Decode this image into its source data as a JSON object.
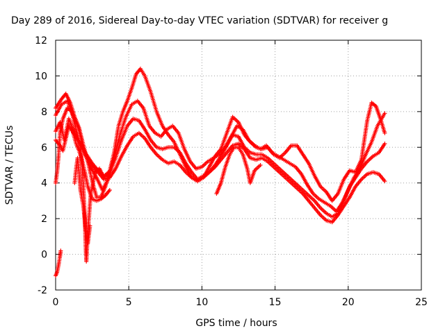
{
  "chart_data": {
    "type": "scatter",
    "title": "Day 289 of 2016, Sidereal Day-to-day VTEC variation (SDTVAR) for receiver g",
    "xlabel": "GPS time / hours",
    "ylabel": "SDTVAR / TECUs",
    "xlim": [
      0,
      25
    ],
    "ylim": [
      -2,
      12
    ],
    "xticks": [
      "0",
      "5",
      "10",
      "15",
      "20",
      "25"
    ],
    "yticks": [
      "-2",
      "0",
      "2",
      "4",
      "6",
      "8",
      "10",
      "12"
    ],
    "grid": true,
    "marker": "+",
    "series_color": "#ff0000",
    "series": [
      {
        "name": "trace-1",
        "points": [
          [
            0.0,
            8.2
          ],
          [
            0.4,
            8.7
          ],
          [
            0.7,
            9.0
          ],
          [
            1.0,
            8.5
          ],
          [
            1.3,
            7.7
          ],
          [
            1.6,
            7.1
          ],
          [
            1.9,
            6.1
          ],
          [
            2.2,
            5.2
          ],
          [
            2.5,
            4.1
          ],
          [
            2.8,
            3.2
          ],
          [
            3.1,
            3.2
          ],
          [
            3.4,
            3.8
          ],
          [
            3.7,
            4.7
          ],
          [
            4.0,
            5.7
          ],
          [
            4.3,
            7.2
          ],
          [
            4.6,
            8.0
          ],
          [
            4.9,
            8.6
          ],
          [
            5.2,
            9.3
          ],
          [
            5.5,
            10.1
          ],
          [
            5.8,
            10.4
          ],
          [
            6.1,
            10.0
          ],
          [
            6.5,
            9.1
          ],
          [
            6.9,
            8.0
          ],
          [
            7.3,
            7.2
          ],
          [
            7.7,
            6.7
          ],
          [
            8.1,
            6.3
          ],
          [
            8.5,
            5.6
          ],
          [
            8.9,
            4.9
          ],
          [
            9.3,
            4.3
          ],
          [
            9.7,
            4.1
          ],
          [
            10.1,
            4.3
          ],
          [
            10.5,
            4.9
          ],
          [
            10.9,
            5.5
          ],
          [
            11.3,
            5.9
          ],
          [
            11.7,
            6.8
          ],
          [
            12.1,
            7.7
          ],
          [
            12.5,
            7.4
          ],
          [
            12.9,
            6.7
          ],
          [
            13.3,
            6.3
          ],
          [
            13.7,
            6.0
          ],
          [
            14.1,
            5.9
          ],
          [
            14.5,
            6.0
          ],
          [
            14.9,
            5.6
          ],
          [
            15.3,
            5.4
          ],
          [
            15.7,
            5.7
          ],
          [
            16.1,
            6.1
          ],
          [
            16.5,
            6.1
          ],
          [
            16.9,
            5.6
          ],
          [
            17.3,
            5.1
          ],
          [
            17.7,
            4.4
          ],
          [
            18.1,
            3.8
          ],
          [
            18.5,
            3.5
          ],
          [
            18.9,
            3.0
          ],
          [
            19.3,
            3.4
          ],
          [
            19.7,
            4.2
          ],
          [
            20.1,
            4.7
          ],
          [
            20.5,
            4.6
          ],
          [
            20.9,
            5.3
          ],
          [
            21.3,
            7.5
          ],
          [
            21.6,
            8.5
          ],
          [
            21.9,
            8.3
          ],
          [
            22.2,
            7.6
          ],
          [
            22.5,
            6.8
          ]
        ]
      },
      {
        "name": "trace-2",
        "points": [
          [
            0.0,
            7.8
          ],
          [
            0.4,
            8.4
          ],
          [
            0.8,
            8.6
          ],
          [
            1.2,
            7.8
          ],
          [
            1.6,
            7.0
          ],
          [
            2.0,
            5.6
          ],
          [
            2.4,
            4.9
          ],
          [
            2.8,
            4.3
          ],
          [
            3.2,
            3.6
          ],
          [
            3.6,
            4.2
          ],
          [
            4.0,
            5.4
          ],
          [
            4.4,
            6.7
          ],
          [
            4.8,
            7.7
          ],
          [
            5.2,
            8.4
          ],
          [
            5.6,
            8.6
          ],
          [
            6.0,
            8.2
          ],
          [
            6.4,
            7.2
          ],
          [
            6.8,
            6.8
          ],
          [
            7.2,
            6.6
          ],
          [
            7.6,
            7.0
          ],
          [
            8.0,
            7.2
          ],
          [
            8.4,
            6.8
          ],
          [
            8.8,
            5.9
          ],
          [
            9.2,
            5.2
          ],
          [
            9.6,
            4.8
          ],
          [
            10.0,
            4.9
          ],
          [
            10.4,
            5.2
          ],
          [
            10.8,
            5.4
          ],
          [
            11.2,
            5.6
          ],
          [
            11.6,
            6.0
          ],
          [
            12.0,
            6.6
          ],
          [
            12.4,
            7.2
          ],
          [
            12.8,
            7.0
          ],
          [
            13.2,
            6.4
          ],
          [
            13.6,
            6.1
          ],
          [
            14.0,
            5.9
          ],
          [
            14.4,
            6.1
          ],
          [
            14.8,
            5.7
          ],
          [
            15.2,
            5.5
          ],
          [
            15.6,
            5.3
          ],
          [
            16.0,
            5.1
          ],
          [
            16.4,
            4.9
          ],
          [
            16.8,
            4.5
          ],
          [
            17.2,
            3.9
          ],
          [
            17.6,
            3.4
          ],
          [
            18.0,
            3.1
          ],
          [
            18.4,
            2.9
          ],
          [
            18.8,
            2.7
          ],
          [
            19.2,
            2.4
          ],
          [
            19.6,
            2.9
          ],
          [
            20.0,
            3.6
          ],
          [
            20.4,
            4.3
          ],
          [
            20.8,
            4.8
          ],
          [
            21.2,
            5.6
          ],
          [
            21.6,
            6.3
          ],
          [
            22.0,
            7.2
          ],
          [
            22.5,
            7.9
          ]
        ]
      },
      {
        "name": "trace-3",
        "points": [
          [
            0.0,
            6.9
          ],
          [
            0.3,
            7.4
          ],
          [
            0.6,
            6.4
          ],
          [
            0.9,
            7.6
          ],
          [
            1.3,
            6.8
          ],
          [
            1.7,
            6.2
          ],
          [
            2.1,
            5.6
          ],
          [
            2.5,
            5.1
          ],
          [
            2.9,
            4.7
          ],
          [
            3.3,
            4.4
          ],
          [
            3.7,
            4.6
          ],
          [
            4.1,
            5.4
          ],
          [
            4.5,
            6.4
          ],
          [
            4.9,
            7.2
          ],
          [
            5.3,
            7.6
          ],
          [
            5.7,
            7.5
          ],
          [
            6.1,
            7.0
          ],
          [
            6.5,
            6.4
          ],
          [
            6.9,
            6.0
          ],
          [
            7.3,
            5.9
          ],
          [
            7.7,
            6.0
          ],
          [
            8.1,
            6.0
          ],
          [
            8.5,
            5.7
          ],
          [
            8.9,
            5.1
          ],
          [
            9.3,
            4.6
          ],
          [
            9.7,
            4.2
          ],
          [
            10.1,
            4.4
          ],
          [
            10.5,
            4.6
          ],
          [
            10.9,
            5.0
          ],
          [
            11.3,
            5.5
          ],
          [
            11.7,
            6.1
          ],
          [
            12.1,
            6.7
          ],
          [
            12.5,
            6.6
          ],
          [
            12.9,
            6.0
          ],
          [
            13.3,
            5.7
          ],
          [
            13.7,
            5.6
          ],
          [
            14.1,
            5.6
          ],
          [
            14.5,
            5.4
          ],
          [
            14.9,
            5.1
          ],
          [
            15.3,
            4.8
          ],
          [
            15.7,
            4.5
          ],
          [
            16.1,
            4.2
          ],
          [
            16.5,
            3.9
          ],
          [
            16.9,
            3.6
          ],
          [
            17.3,
            3.3
          ],
          [
            17.7,
            3.0
          ],
          [
            18.1,
            2.6
          ],
          [
            18.5,
            2.3
          ],
          [
            18.9,
            2.1
          ],
          [
            19.3,
            2.3
          ],
          [
            19.7,
            3.0
          ],
          [
            20.1,
            3.8
          ],
          [
            20.5,
            4.3
          ],
          [
            20.9,
            4.8
          ],
          [
            21.3,
            5.2
          ],
          [
            21.7,
            5.5
          ],
          [
            22.1,
            5.7
          ],
          [
            22.5,
            6.2
          ]
        ]
      },
      {
        "name": "trace-4",
        "points": [
          [
            0.0,
            6.4
          ],
          [
            0.3,
            6.1
          ],
          [
            0.5,
            5.8
          ],
          [
            0.9,
            7.2
          ],
          [
            1.3,
            6.7
          ],
          [
            1.7,
            6.2
          ],
          [
            2.1,
            5.5
          ],
          [
            2.5,
            5.0
          ],
          [
            2.9,
            4.6
          ],
          [
            3.3,
            4.2
          ],
          [
            3.7,
            4.3
          ],
          [
            4.1,
            4.8
          ],
          [
            4.5,
            5.5
          ],
          [
            4.9,
            6.1
          ],
          [
            5.3,
            6.6
          ],
          [
            5.7,
            6.8
          ],
          [
            6.1,
            6.5
          ],
          [
            6.5,
            6.0
          ],
          [
            6.9,
            5.6
          ],
          [
            7.3,
            5.3
          ],
          [
            7.7,
            5.1
          ],
          [
            8.1,
            5.2
          ],
          [
            8.5,
            5.0
          ],
          [
            8.9,
            4.6
          ],
          [
            9.3,
            4.3
          ],
          [
            9.7,
            4.1
          ],
          [
            10.1,
            4.3
          ],
          [
            10.5,
            4.6
          ],
          [
            10.9,
            4.9
          ],
          [
            11.3,
            5.3
          ],
          [
            11.7,
            5.7
          ],
          [
            12.1,
            6.1
          ],
          [
            12.5,
            6.2
          ],
          [
            12.9,
            5.9
          ],
          [
            13.3,
            5.4
          ],
          [
            13.7,
            5.3
          ],
          [
            14.1,
            5.4
          ],
          [
            14.5,
            5.2
          ],
          [
            14.9,
            4.9
          ],
          [
            15.3,
            4.6
          ],
          [
            15.7,
            4.3
          ],
          [
            16.1,
            4.0
          ],
          [
            16.5,
            3.7
          ],
          [
            16.9,
            3.4
          ],
          [
            17.3,
            3.0
          ],
          [
            17.7,
            2.6
          ],
          [
            18.1,
            2.2
          ],
          [
            18.5,
            1.9
          ],
          [
            18.9,
            1.8
          ],
          [
            19.3,
            2.2
          ],
          [
            19.7,
            2.7
          ],
          [
            20.1,
            3.2
          ],
          [
            20.5,
            3.8
          ],
          [
            20.9,
            4.2
          ],
          [
            21.3,
            4.5
          ],
          [
            21.7,
            4.6
          ],
          [
            22.1,
            4.5
          ],
          [
            22.5,
            4.1
          ]
        ]
      },
      {
        "name": "trace-5",
        "points": [
          [
            0.0,
            4.0
          ],
          [
            0.1,
            4.6
          ],
          [
            0.2,
            5.5
          ],
          [
            0.3,
            6.8
          ],
          [
            0.5,
            7.6
          ],
          [
            0.8,
            8.2
          ],
          [
            1.1,
            8.0
          ],
          [
            1.4,
            7.0
          ],
          [
            1.7,
            6.0
          ],
          [
            1.8,
            5.0
          ],
          [
            1.9,
            3.8
          ],
          [
            2.0,
            2.0
          ],
          [
            2.05,
            0.5
          ],
          [
            2.1,
            -0.4
          ],
          [
            2.2,
            1.2
          ],
          [
            2.4,
            3.4
          ],
          [
            2.7,
            4.6
          ],
          [
            3.0,
            4.8
          ],
          [
            3.3,
            4.3
          ],
          [
            3.6,
            4.6
          ]
        ]
      },
      {
        "name": "trace-6",
        "points": [
          [
            1.2,
            6.8
          ],
          [
            1.4,
            6.2
          ],
          [
            1.6,
            5.8
          ],
          [
            1.8,
            5.3
          ],
          [
            2.0,
            4.6
          ],
          [
            2.2,
            3.8
          ],
          [
            2.5,
            3.1
          ],
          [
            2.8,
            3.0
          ],
          [
            3.1,
            3.1
          ],
          [
            3.4,
            3.3
          ],
          [
            3.7,
            3.6
          ]
        ]
      },
      {
        "name": "trace-7",
        "points": [
          [
            1.3,
            4.0
          ],
          [
            1.4,
            4.8
          ],
          [
            1.5,
            5.4
          ],
          [
            1.6,
            4.6
          ],
          [
            1.7,
            3.6
          ],
          [
            1.9,
            2.7
          ],
          [
            2.0,
            1.8
          ],
          [
            2.1,
            1.0
          ],
          [
            2.2,
            0.6
          ],
          [
            2.35,
            1.6
          ]
        ]
      },
      {
        "name": "trace-8",
        "points": [
          [
            11.0,
            3.4
          ],
          [
            11.3,
            4.0
          ],
          [
            11.6,
            4.9
          ],
          [
            11.9,
            5.6
          ],
          [
            12.2,
            6.0
          ],
          [
            12.5,
            6.0
          ],
          [
            12.8,
            5.6
          ],
          [
            13.1,
            4.8
          ],
          [
            13.3,
            4.0
          ],
          [
            13.6,
            4.7
          ],
          [
            14.0,
            5.0
          ]
        ]
      },
      {
        "name": "trace-9",
        "points": [
          [
            0.0,
            -1.2
          ],
          [
            0.1,
            -1.0
          ],
          [
            0.2,
            -0.6
          ],
          [
            0.3,
            -0.1
          ],
          [
            0.35,
            0.2
          ]
        ]
      }
    ]
  }
}
